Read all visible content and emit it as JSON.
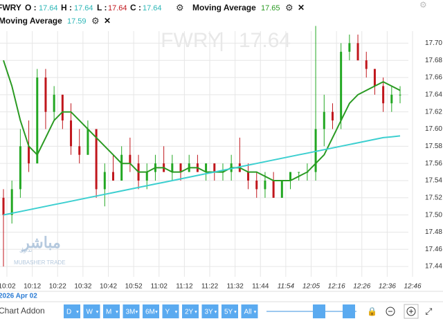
{
  "header": {
    "symbol": "FWRY",
    "o_label": "O :",
    "open": 17.64,
    "h_label": "H :",
    "high": 17.64,
    "l_label": "L :",
    "low": 17.64,
    "c_label": "C :",
    "close": 17.64
  },
  "watermark": {
    "symbol": "FWRY",
    "price": 17.64
  },
  "logo": {
    "arabic": "مباشر",
    "arabic_sub": "تداول",
    "latin": "MUBASHER TRADE"
  },
  "toolbar": {
    "date": "2026 Apr 02",
    "addon": "Chart Addon",
    "ranges": [
      "D",
      "W",
      "M",
      "3M",
      "6M",
      "Y",
      "2Y",
      "3Y",
      "5Y",
      "All"
    ]
  },
  "chart_data": {
    "type": "candlestick",
    "grid": true,
    "up_color": "#22a722",
    "down_color": "#c0161c",
    "ylim": [
      17.428,
      17.714
    ],
    "yticks": [
      {
        "value": 17.7,
        "label": "17.70"
      },
      17.68,
      17.66,
      17.64,
      17.62,
      {
        "value": 17.6,
        "label": "17.60"
      },
      17.58,
      17.56,
      17.54,
      17.52,
      {
        "value": 17.5,
        "label": "17.50"
      },
      17.48,
      17.46,
      17.44
    ],
    "xticks": [
      "10:02",
      "10:12",
      "10:22",
      "10:32",
      "10:42",
      "10:52",
      "11:02",
      "11:12",
      "11:22",
      "11:32",
      "11:44",
      "11:54",
      "12:05",
      "12:16",
      "12:26",
      "12:36",
      "12:46"
    ],
    "ohlc": [
      [
        17.52,
        17.53,
        17.44,
        17.5
      ],
      [
        17.5,
        17.54,
        17.49,
        17.53
      ],
      [
        17.53,
        17.6,
        17.52,
        17.58
      ],
      [
        17.58,
        17.61,
        17.55,
        17.56
      ],
      [
        17.56,
        17.67,
        17.56,
        17.66
      ],
      [
        17.66,
        17.67,
        17.6,
        17.62
      ],
      [
        17.62,
        17.65,
        17.61,
        17.64
      ],
      [
        17.64,
        17.64,
        17.6,
        17.61
      ],
      [
        17.61,
        17.63,
        17.57,
        17.58
      ],
      [
        17.58,
        17.6,
        17.56,
        17.57
      ],
      [
        17.57,
        17.61,
        17.57,
        17.6
      ],
      [
        17.6,
        17.6,
        17.52,
        17.53
      ],
      [
        17.53,
        17.56,
        17.51,
        17.55
      ],
      [
        17.55,
        17.57,
        17.54,
        17.54
      ],
      [
        17.54,
        17.58,
        17.54,
        17.57
      ],
      [
        17.57,
        17.59,
        17.55,
        17.56
      ],
      [
        17.56,
        17.57,
        17.53,
        17.54
      ],
      [
        17.54,
        17.56,
        17.53,
        17.55
      ],
      [
        17.55,
        17.57,
        17.54,
        17.56
      ],
      [
        17.56,
        17.58,
        17.55,
        17.55
      ],
      [
        17.55,
        17.57,
        17.54,
        17.56
      ],
      [
        17.56,
        17.56,
        17.54,
        17.55
      ],
      [
        17.55,
        17.57,
        17.55,
        17.56
      ],
      [
        17.56,
        17.57,
        17.55,
        17.55
      ],
      [
        17.55,
        17.56,
        17.54,
        17.56
      ],
      [
        17.56,
        17.56,
        17.54,
        17.55
      ],
      [
        17.55,
        17.56,
        17.54,
        17.55
      ],
      [
        17.55,
        17.57,
        17.54,
        17.56
      ],
      [
        17.56,
        17.59,
        17.55,
        17.55
      ],
      [
        17.55,
        17.56,
        17.53,
        17.54
      ],
      [
        17.54,
        17.55,
        17.52,
        17.53
      ],
      [
        17.53,
        17.55,
        17.52,
        17.54
      ],
      [
        17.54,
        17.55,
        17.52,
        17.52
      ],
      [
        17.52,
        17.54,
        17.52,
        17.54
      ],
      [
        17.54,
        17.55,
        17.53,
        17.55
      ],
      [
        17.55,
        17.55,
        17.54,
        17.55
      ],
      [
        17.55,
        17.56,
        17.54,
        17.55
      ],
      [
        17.55,
        17.72,
        17.54,
        17.6
      ],
      [
        17.6,
        17.64,
        17.58,
        17.62
      ],
      [
        17.62,
        17.63,
        17.6,
        17.61
      ],
      [
        17.61,
        17.7,
        17.6,
        17.69
      ],
      [
        17.69,
        17.71,
        17.68,
        17.7
      ],
      [
        17.7,
        17.71,
        17.68,
        17.68
      ],
      [
        17.68,
        17.69,
        17.66,
        17.67
      ],
      [
        17.67,
        17.67,
        17.64,
        17.65
      ],
      [
        17.65,
        17.66,
        17.62,
        17.63
      ],
      [
        17.63,
        17.65,
        17.62,
        17.64
      ],
      [
        17.64,
        17.65,
        17.63,
        17.64
      ]
    ],
    "series": [
      {
        "name": "Moving Average",
        "last": 17.65,
        "color": "#2a9a22",
        "values": [
          17.68,
          17.65,
          17.61,
          17.58,
          17.57,
          17.59,
          17.61,
          17.62,
          17.62,
          17.61,
          17.6,
          17.59,
          17.58,
          17.57,
          17.56,
          17.56,
          17.55,
          17.55,
          17.555,
          17.555,
          17.55,
          17.55,
          17.555,
          17.555,
          17.55,
          17.55,
          17.55,
          17.555,
          17.555,
          17.55,
          17.55,
          17.545,
          17.54,
          17.54,
          17.54,
          17.545,
          17.55,
          17.56,
          17.57,
          17.59,
          17.61,
          17.63,
          17.64,
          17.645,
          17.65,
          17.655,
          17.65,
          17.645
        ]
      },
      {
        "name": "Moving Average",
        "last": 17.59,
        "color": "#3ccfd0",
        "values": [
          17.5,
          17.502,
          17.504,
          17.506,
          17.508,
          17.51,
          17.512,
          17.514,
          17.516,
          17.518,
          17.52,
          17.522,
          17.524,
          17.526,
          17.528,
          17.53,
          17.532,
          17.534,
          17.536,
          17.538,
          17.54,
          17.542,
          17.544,
          17.546,
          17.548,
          17.55,
          17.552,
          17.554,
          17.556,
          17.558,
          17.56,
          17.562,
          17.564,
          17.566,
          17.568,
          17.57,
          17.572,
          17.574,
          17.576,
          17.578,
          17.58,
          17.582,
          17.584,
          17.586,
          17.588,
          17.59,
          17.591,
          17.592
        ]
      }
    ]
  }
}
